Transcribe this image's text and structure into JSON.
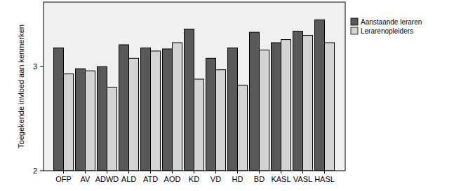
{
  "chart_data": {
    "type": "bar",
    "y_label": "Toegekende invloed aan kenmerken",
    "categories": [
      "OFP",
      "AV",
      "ADWD",
      "ALD",
      "ATD",
      "AOD",
      "KD",
      "VD",
      "HD",
      "BD",
      "KASL",
      "VASL",
      "HASL"
    ],
    "series": [
      {
        "name": "Aanstaande leraren",
        "color": "#595959",
        "values": [
          3.18,
          2.98,
          3.0,
          3.21,
          3.18,
          3.17,
          3.36,
          3.08,
          3.18,
          3.33,
          3.23,
          3.34,
          3.45
        ]
      },
      {
        "name": "Lerarenopleiders",
        "color": "#d4d4d4",
        "values": [
          2.93,
          2.96,
          2.8,
          3.08,
          3.15,
          3.23,
          2.88,
          2.97,
          2.82,
          3.16,
          3.26,
          3.3,
          3.23
        ]
      }
    ],
    "ylim": [
      2,
      3.62
    ],
    "yticks": [
      2,
      3
    ],
    "grid": false,
    "legend": "right"
  }
}
